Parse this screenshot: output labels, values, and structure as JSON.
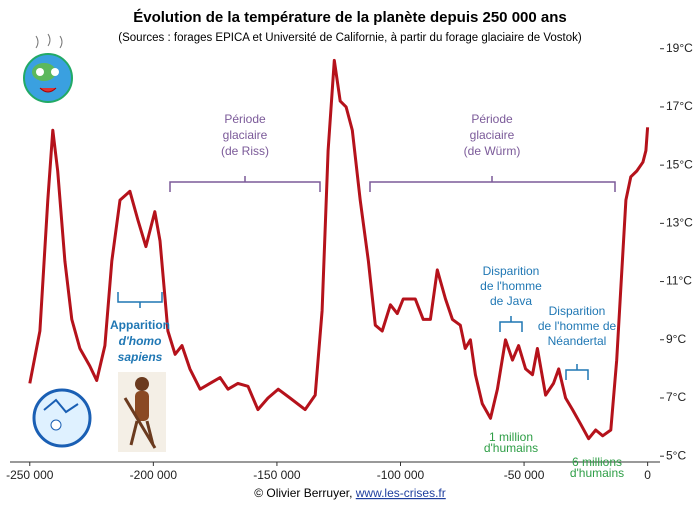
{
  "chart_data": {
    "type": "line",
    "title": "Évolution de la température de la planète depuis 250 000 ans",
    "subtitle": "(Sources : forages EPICA et Université de Californie, à partir du forage glaciaire de Vostok)",
    "footer": [
      "© Olivier Berruyer, ",
      "www.les-crises.fr"
    ],
    "xlim": [
      -258000,
      5000
    ],
    "ylim": [
      4.8,
      19.3
    ],
    "xticks": [
      {
        "value": -250000,
        "label": "-250 000"
      },
      {
        "value": -200000,
        "label": "-200 000"
      },
      {
        "value": -150000,
        "label": "-150 000"
      },
      {
        "value": -100000,
        "label": "-100 000"
      },
      {
        "value": -50000,
        "label": "-50 000"
      },
      0
    ],
    "yticks": [
      {
        "value": 5,
        "label": "5°C"
      },
      {
        "value": 7,
        "label": "7°C"
      },
      {
        "value": 9,
        "label": "9°C"
      },
      {
        "value": 11,
        "label": "11°C"
      },
      {
        "value": 13,
        "label": "13°C"
      },
      {
        "value": 15,
        "label": "15°C"
      },
      {
        "value": 17,
        "label": "17°C"
      },
      {
        "value": 19,
        "label": "19°C"
      }
    ],
    "annotations": [
      {
        "lines": [
          "Période",
          "glaciaire",
          "(de Riss)"
        ],
        "color": "#7b5a99"
      },
      {
        "lines": [
          "Période",
          "glaciaire",
          "(de Würm)"
        ],
        "color": "#7b5a99"
      },
      {
        "lines": [
          "Apparition",
          "d'homo",
          "sapiens"
        ],
        "color": "#1f77b4"
      },
      {
        "lines": [
          "Disparition",
          "de l'homme",
          "de Java"
        ],
        "color": "#1f77b4"
      },
      {
        "lines": [
          "Disparition",
          "de l'homme de",
          "Néandertal"
        ],
        "color": "#1f77b4"
      },
      {
        "lines": [
          "1 million",
          "d'humains"
        ],
        "color": "#2e9e46"
      },
      {
        "lines": [
          "6 millions",
          "d'humains"
        ],
        "color": "#2e9e46"
      }
    ],
    "series": [
      {
        "color": "#b5121b",
        "x": [
          -250000,
          -245900,
          -242700,
          -240700,
          -238700,
          -235800,
          -233000,
          -229700,
          -225700,
          -222900,
          -219600,
          -216800,
          -213500,
          -209500,
          -206200,
          -203000,
          -199400,
          -197300,
          -194100,
          -191200,
          -188400,
          -185200,
          -181100,
          -177100,
          -173000,
          -169800,
          -165800,
          -161700,
          -157700,
          -153600,
          -149500,
          -144700,
          -138600,
          -134500,
          -131700,
          -129300,
          -126800,
          -124400,
          -122000,
          -119500,
          -116300,
          -113000,
          -110200,
          -107400,
          -104100,
          -101300,
          -98900,
          -94000,
          -90800,
          -87900,
          -85100,
          -81800,
          -79000,
          -75800,
          -73800,
          -71700,
          -69700,
          -66900,
          -63600,
          -60800,
          -57500,
          -54700,
          -52200,
          -49400,
          -46600,
          -44600,
          -41300,
          -38100,
          -36000,
          -33200,
          -30400,
          -27100,
          -23900,
          -21000,
          -18200,
          -14900,
          -12500,
          -10900,
          -8800,
          -6800,
          -4400,
          -1900,
          -700,
          0
        ],
        "values": [
          7.5,
          9.3,
          13.8,
          16.2,
          14.8,
          11.7,
          9.7,
          8.7,
          8.1,
          7.6,
          8.8,
          11.7,
          13.8,
          14.1,
          13.1,
          12.2,
          13.4,
          12.4,
          9.3,
          8.5,
          8.8,
          8.0,
          7.3,
          7.5,
          7.7,
          7.3,
          7.5,
          7.4,
          6.6,
          7.0,
          7.3,
          7.0,
          6.6,
          7.1,
          10.0,
          15.5,
          18.6,
          17.2,
          17.0,
          16.2,
          13.8,
          11.7,
          9.5,
          9.3,
          10.2,
          9.9,
          10.4,
          10.4,
          9.7,
          9.7,
          11.4,
          10.4,
          9.7,
          9.5,
          8.7,
          9.0,
          7.8,
          6.8,
          6.3,
          7.3,
          9.0,
          8.3,
          8.8,
          8.0,
          7.8,
          8.7,
          7.1,
          7.5,
          8.0,
          7.0,
          6.6,
          6.1,
          5.6,
          5.9,
          5.7,
          5.9,
          8.3,
          10.7,
          13.8,
          14.6,
          14.8,
          15.1,
          15.5,
          16.3
        ]
      }
    ]
  }
}
